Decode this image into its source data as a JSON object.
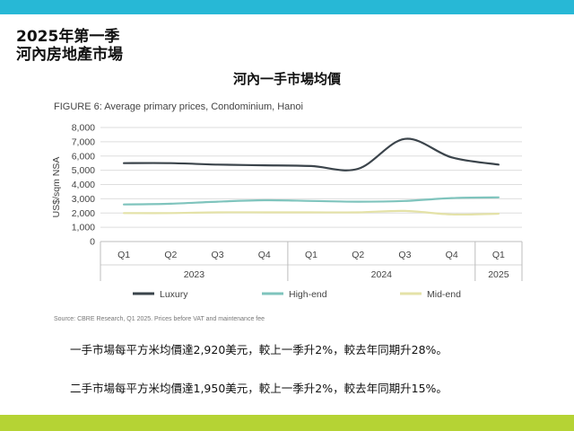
{
  "slide": {
    "heading_line1": "2025年第一季",
    "heading_line2": "河內房地產市場",
    "chart_cn_title": "河內一手市場均價",
    "source": "Source: CBRE Research, Q1 2025. Prices before VAT and maintenance fee",
    "stat1": "一手市場每平方米均價達2,920美元，較上一季升2%，較去年同期升28%。",
    "stat2": "二手市場每平方米均價達1,950美元，較上一季升2%，較去年同期升15%。",
    "colors": {
      "top_bar": "#27b8d6",
      "bottom_bar": "#b5d334"
    }
  },
  "chart_data": {
    "type": "line",
    "title": "FIGURE 6: Average primary prices, Condominium, Hanoi",
    "ylabel": "US$/sqm NSA",
    "ylim": [
      0,
      8000
    ],
    "yticks": [
      0,
      1000,
      2000,
      3000,
      4000,
      5000,
      6000,
      7000,
      8000
    ],
    "ytick_labels": [
      "0",
      "1,000",
      "2,000",
      "3,000",
      "4,000",
      "5,000",
      "6,000",
      "7,000",
      "8,000"
    ],
    "categories": [
      "Q1",
      "Q2",
      "Q3",
      "Q4",
      "Q1",
      "Q2",
      "Q3",
      "Q4",
      "Q1"
    ],
    "year_groups": [
      {
        "label": "2023",
        "count": 4
      },
      {
        "label": "2024",
        "count": 4
      },
      {
        "label": "2025",
        "count": 1
      }
    ],
    "grid": true,
    "legend_position": "bottom",
    "series": [
      {
        "name": "Luxury",
        "color": "#3b444b",
        "values": [
          5500,
          5500,
          5400,
          5350,
          5300,
          5100,
          7200,
          5900,
          5400
        ]
      },
      {
        "name": "High-end",
        "color": "#7fc4bd",
        "values": [
          2600,
          2650,
          2800,
          2900,
          2850,
          2800,
          2850,
          3050,
          3100
        ]
      },
      {
        "name": "Mid-end",
        "color": "#e4e2a8",
        "values": [
          2000,
          2000,
          2050,
          2050,
          2050,
          2050,
          2150,
          1900,
          1950
        ]
      }
    ]
  }
}
